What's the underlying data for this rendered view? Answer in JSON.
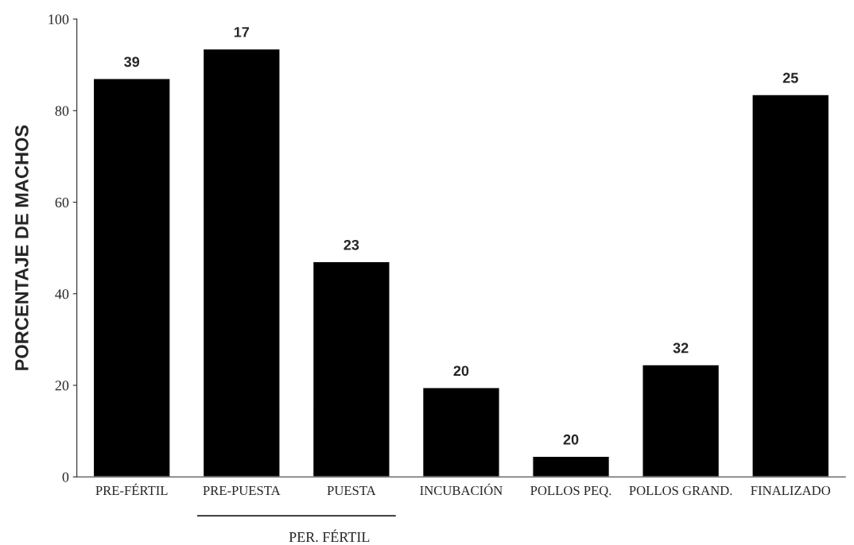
{
  "chart_data": {
    "type": "bar",
    "ylabel": "PORCENTAJE DE MACHOS",
    "categories": [
      "PRE-FÉRTIL",
      "PRE-PUESTA",
      "PUESTA",
      "INCUBACIÓN",
      "POLLOS PEQ.",
      "POLLOS GRAND.",
      "FINALIZADO"
    ],
    "values": [
      87,
      93.5,
      47,
      19.5,
      4.5,
      24.5,
      83.5
    ],
    "color": "#000000",
    "ylim": [
      0,
      100
    ],
    "yticks": [
      0,
      20,
      40,
      60,
      80,
      100
    ],
    "grid": false,
    "annotations": [
      {
        "text": "39",
        "x": "PRE-FÉRTIL",
        "y": 87
      },
      {
        "text": "17",
        "x": "PRE-PUESTA",
        "y": 93.5
      },
      {
        "text": "23",
        "x": "PUESTA",
        "y": 47
      },
      {
        "text": "20",
        "x": "INCUBACIÓN",
        "y": 19.5
      },
      {
        "text": "20",
        "x": "POLLOS PEQ.",
        "y": 4.5
      },
      {
        "text": "32",
        "x": "POLLOS GRAND.",
        "y": 24.5
      },
      {
        "text": "25",
        "x": "FINALIZADO",
        "y": 83.5
      },
      "PER. FÉRTIL"
    ]
  }
}
